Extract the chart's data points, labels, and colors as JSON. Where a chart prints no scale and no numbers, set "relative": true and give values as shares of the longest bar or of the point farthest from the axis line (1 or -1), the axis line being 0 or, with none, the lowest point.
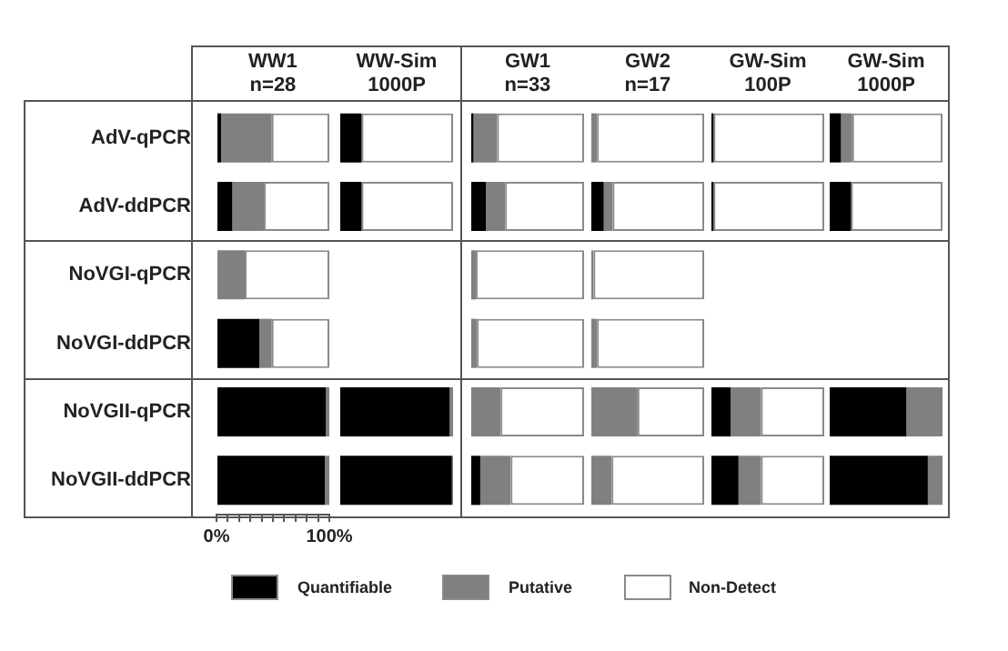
{
  "chart_data": [
    {
      "type": "bar",
      "orientation": "horizontal",
      "stacked": true,
      "title": "WW1 n=28",
      "categories": [
        "AdV-qPCR",
        "AdV-ddPCR",
        "NoVGI-qPCR",
        "NoVGI-ddPCR",
        "NoVGII-qPCR",
        "NoVGII-ddPCR"
      ],
      "series": [
        {
          "name": "Quantifiable",
          "color": "#000000",
          "values": [
            4,
            14,
            0,
            38,
            97,
            96
          ]
        },
        {
          "name": "Putative",
          "color": "#808080",
          "values": [
            45,
            28,
            25,
            11,
            3,
            4
          ]
        },
        {
          "name": "Non-Detect",
          "color": "#ffffff",
          "values": [
            51,
            58,
            75,
            51,
            0,
            0
          ]
        }
      ],
      "xlim": [
        0,
        100
      ],
      "xticks": [
        {
          "value": 0,
          "label": "0%"
        },
        {
          "value": 10,
          "label": null
        },
        {
          "value": 20,
          "label": null
        },
        {
          "value": 30,
          "label": null
        },
        {
          "value": 40,
          "label": null
        },
        {
          "value": 50,
          "label": null
        },
        {
          "value": 60,
          "label": null
        },
        {
          "value": 70,
          "label": null
        },
        {
          "value": 80,
          "label": null
        },
        {
          "value": 90,
          "label": null
        },
        {
          "value": 100,
          "label": "100%"
        }
      ],
      "legend": "bottom"
    },
    {
      "type": "bar",
      "orientation": "horizontal",
      "stacked": true,
      "relative": true,
      "title": "WW-Sim 1000P",
      "categories": [
        null,
        null,
        null,
        null,
        null,
        null
      ],
      "series": [
        {
          "color": "#000000",
          "values": [
            0.19,
            0.19,
            null,
            null,
            0.97,
            0.99
          ]
        },
        {
          "color": "#808080",
          "values": [
            0,
            0,
            null,
            null,
            0.03,
            0.01
          ]
        },
        {
          "color": "#ffffff",
          "values": [
            0.81,
            0.81,
            null,
            null,
            0,
            0
          ]
        }
      ]
    },
    {
      "type": "bar",
      "orientation": "horizontal",
      "stacked": true,
      "relative": true,
      "title": "GW1 n=33",
      "categories": [
        null,
        null,
        null,
        null,
        null,
        null
      ],
      "series": [
        {
          "color": "#000000",
          "values": [
            0.02,
            0.13,
            0,
            0,
            0,
            0.08
          ]
        },
        {
          "color": "#808080",
          "values": [
            0.21,
            0.17,
            0.04,
            0.05,
            0.26,
            0.27
          ]
        },
        {
          "color": "#ffffff",
          "values": [
            0.77,
            0.7,
            0.96,
            0.95,
            0.74,
            0.65
          ]
        }
      ]
    },
    {
      "type": "bar",
      "orientation": "horizontal",
      "stacked": true,
      "relative": true,
      "title": "GW2 n=17",
      "categories": [
        null,
        null,
        null,
        null,
        null,
        null
      ],
      "series": [
        {
          "color": "#000000",
          "values": [
            0,
            0.11,
            0,
            0,
            0,
            0
          ]
        },
        {
          "color": "#808080",
          "values": [
            0.05,
            0.08,
            0.02,
            0.05,
            0.41,
            0.18
          ]
        },
        {
          "color": "#ffffff",
          "values": [
            0.95,
            0.81,
            0.98,
            0.95,
            0.59,
            0.82
          ]
        }
      ]
    },
    {
      "type": "bar",
      "orientation": "horizontal",
      "stacked": true,
      "relative": true,
      "title": "GW-Sim 100P",
      "categories": [
        null,
        null,
        null,
        null,
        null,
        null
      ],
      "series": [
        {
          "color": "#000000",
          "values": [
            0.02,
            0.02,
            null,
            null,
            0.17,
            0.24
          ]
        },
        {
          "color": "#808080",
          "values": [
            0,
            0,
            null,
            null,
            0.27,
            0.2
          ]
        },
        {
          "color": "#ffffff",
          "values": [
            0.98,
            0.98,
            null,
            null,
            0.56,
            0.56
          ]
        }
      ]
    },
    {
      "type": "bar",
      "orientation": "horizontal",
      "stacked": true,
      "relative": true,
      "title": "GW-Sim 1000P",
      "categories": [
        null,
        null,
        null,
        null,
        null,
        null
      ],
      "series": [
        {
          "color": "#000000",
          "values": [
            0.1,
            0.19,
            null,
            null,
            0.68,
            0.87
          ]
        },
        {
          "color": "#808080",
          "values": [
            0.1,
            0,
            null,
            null,
            0.32,
            0.13
          ]
        },
        {
          "color": "#ffffff",
          "values": [
            0.8,
            0.81,
            null,
            null,
            0,
            0
          ]
        }
      ]
    }
  ]
}
